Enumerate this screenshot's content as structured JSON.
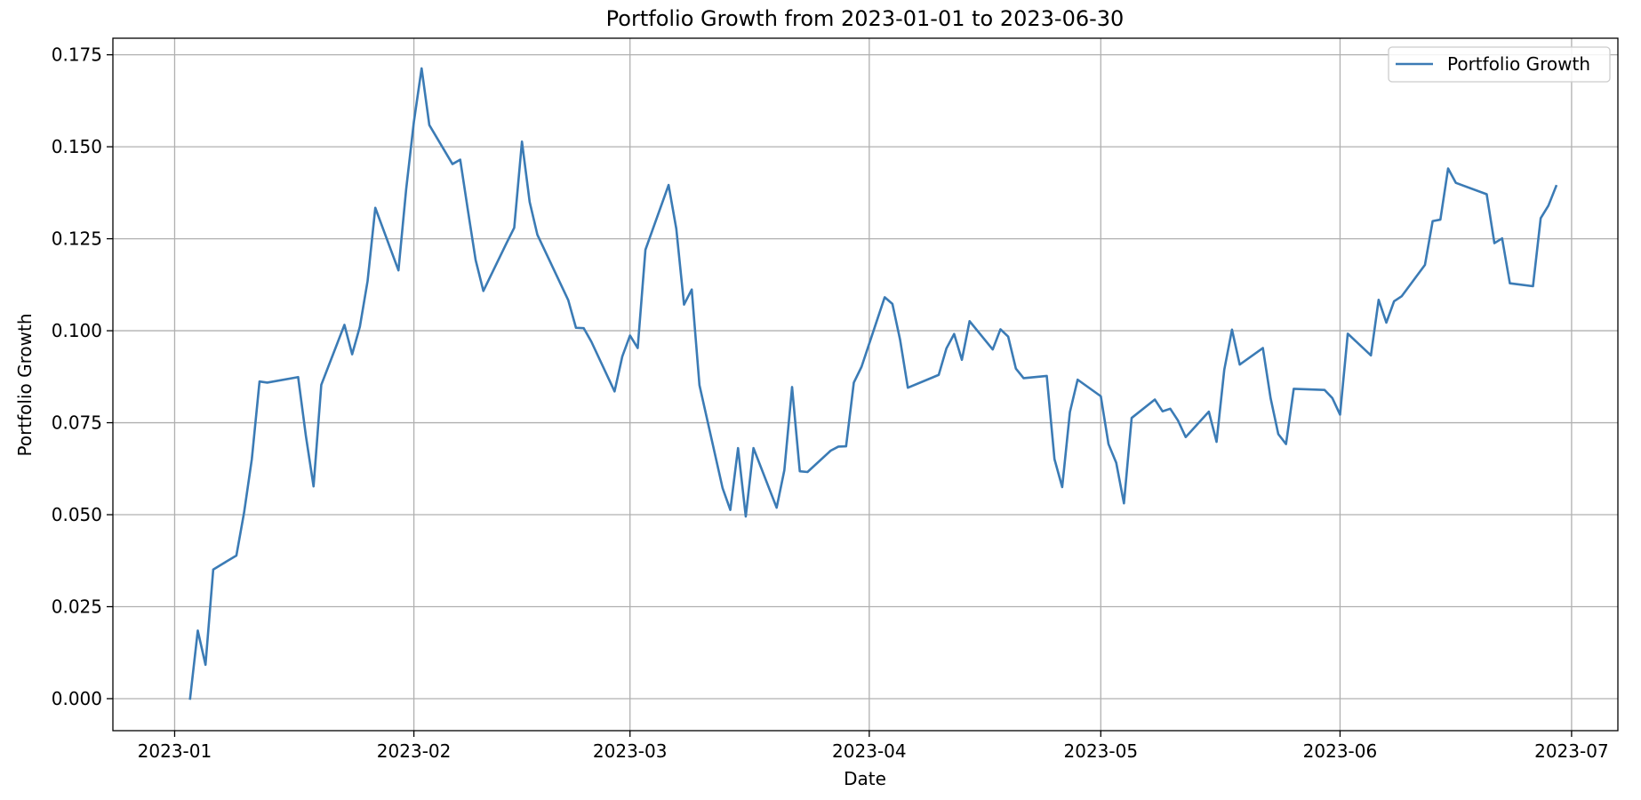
{
  "chart_data": {
    "type": "line",
    "title": "Portfolio Growth from 2023-01-01 to 2023-06-30",
    "xlabel": "Date",
    "ylabel": "Portfolio Growth",
    "x_axis_kind": "date",
    "xlim": [
      "2022-12-24",
      "2023-07-07"
    ],
    "ylim": [
      -0.0087,
      0.1795
    ],
    "xticks": [
      "2023-01-01",
      "2023-02-01",
      "2023-03-01",
      "2023-04-01",
      "2023-05-01",
      "2023-06-01",
      "2023-07-01"
    ],
    "xtick_labels": [
      "2023-01",
      "2023-02",
      "2023-03",
      "2023-04",
      "2023-05",
      "2023-06",
      "2023-07"
    ],
    "yticks": [
      0.0,
      0.025,
      0.05,
      0.075,
      0.1,
      0.125,
      0.15,
      0.175
    ],
    "ytick_labels": [
      "0.000",
      "0.025",
      "0.050",
      "0.075",
      "0.100",
      "0.125",
      "0.150",
      "0.175"
    ],
    "grid": true,
    "legend": {
      "placement": "upper-right",
      "entries": [
        "Portfolio Growth"
      ]
    },
    "colors": {
      "series": "#3b7bb5"
    },
    "series": [
      {
        "name": "Portfolio Growth",
        "x": [
          "2023-01-03",
          "2023-01-04",
          "2023-01-05",
          "2023-01-06",
          "2023-01-09",
          "2023-01-10",
          "2023-01-11",
          "2023-01-12",
          "2023-01-13",
          "2023-01-17",
          "2023-01-18",
          "2023-01-19",
          "2023-01-20",
          "2023-01-23",
          "2023-01-24",
          "2023-01-25",
          "2023-01-26",
          "2023-01-27",
          "2023-01-30",
          "2023-01-31",
          "2023-02-01",
          "2023-02-02",
          "2023-02-03",
          "2023-02-06",
          "2023-02-07",
          "2023-02-08",
          "2023-02-09",
          "2023-02-10",
          "2023-02-13",
          "2023-02-14",
          "2023-02-15",
          "2023-02-16",
          "2023-02-17",
          "2023-02-21",
          "2023-02-22",
          "2023-02-23",
          "2023-02-24",
          "2023-02-27",
          "2023-02-28",
          "2023-03-01",
          "2023-03-02",
          "2023-03-03",
          "2023-03-06",
          "2023-03-07",
          "2023-03-08",
          "2023-03-09",
          "2023-03-10",
          "2023-03-13",
          "2023-03-14",
          "2023-03-15",
          "2023-03-16",
          "2023-03-17",
          "2023-03-20",
          "2023-03-21",
          "2023-03-22",
          "2023-03-23",
          "2023-03-24",
          "2023-03-27",
          "2023-03-28",
          "2023-03-29",
          "2023-03-30",
          "2023-03-31",
          "2023-04-03",
          "2023-04-04",
          "2023-04-05",
          "2023-04-06",
          "2023-04-10",
          "2023-04-11",
          "2023-04-12",
          "2023-04-13",
          "2023-04-14",
          "2023-04-17",
          "2023-04-18",
          "2023-04-19",
          "2023-04-20",
          "2023-04-21",
          "2023-04-24",
          "2023-04-25",
          "2023-04-26",
          "2023-04-27",
          "2023-04-28",
          "2023-05-01",
          "2023-05-02",
          "2023-05-03",
          "2023-05-04",
          "2023-05-05",
          "2023-05-08",
          "2023-05-09",
          "2023-05-10",
          "2023-05-11",
          "2023-05-12",
          "2023-05-15",
          "2023-05-16",
          "2023-05-17",
          "2023-05-18",
          "2023-05-19",
          "2023-05-22",
          "2023-05-23",
          "2023-05-24",
          "2023-05-25",
          "2023-05-26",
          "2023-05-30",
          "2023-05-31",
          "2023-06-01",
          "2023-06-02",
          "2023-06-05",
          "2023-06-06",
          "2023-06-07",
          "2023-06-08",
          "2023-06-09",
          "2023-06-12",
          "2023-06-13",
          "2023-06-14",
          "2023-06-15",
          "2023-06-16",
          "2023-06-20",
          "2023-06-21",
          "2023-06-22",
          "2023-06-23",
          "2023-06-26",
          "2023-06-27",
          "2023-06-28",
          "2023-06-29"
        ],
        "y": [
          0.0,
          0.0185,
          0.0092,
          0.0351,
          0.0389,
          0.0506,
          0.0651,
          0.0862,
          0.0859,
          0.0874,
          0.0715,
          0.0577,
          0.0853,
          0.1016,
          0.0936,
          0.1011,
          0.1135,
          0.1334,
          0.1164,
          0.1385,
          0.1568,
          0.1713,
          0.1559,
          0.1453,
          0.1465,
          0.1327,
          0.1192,
          0.1108,
          0.1238,
          0.128,
          0.1514,
          0.135,
          0.1261,
          0.1083,
          0.1008,
          0.1007,
          0.097,
          0.0835,
          0.093,
          0.0987,
          0.0953,
          0.122,
          0.1396,
          0.1277,
          0.1071,
          0.1112,
          0.0852,
          0.0572,
          0.0513,
          0.0681,
          0.0495,
          0.0681,
          0.0519,
          0.0621,
          0.0847,
          0.0618,
          0.0616,
          0.0674,
          0.0685,
          0.0686,
          0.0859,
          0.0902,
          0.1091,
          0.1073,
          0.0975,
          0.0845,
          0.088,
          0.0952,
          0.0991,
          0.0921,
          0.1026,
          0.0949,
          0.1004,
          0.0984,
          0.0897,
          0.0871,
          0.0877,
          0.0651,
          0.0575,
          0.0779,
          0.0867,
          0.0822,
          0.0692,
          0.0641,
          0.0531,
          0.0763,
          0.0813,
          0.0781,
          0.0788,
          0.0756,
          0.0711,
          0.078,
          0.0698,
          0.0894,
          0.1003,
          0.0908,
          0.0953,
          0.0817,
          0.0719,
          0.0692,
          0.0842,
          0.0839,
          0.0817,
          0.0772,
          0.0992,
          0.0933,
          0.1084,
          0.1022,
          0.108,
          0.1094,
          0.1179,
          0.1298,
          0.1302,
          0.1441,
          0.1402,
          0.1371,
          0.1238,
          0.1251,
          0.1129,
          0.1121,
          0.1306,
          0.134,
          0.1393
        ]
      }
    ]
  }
}
